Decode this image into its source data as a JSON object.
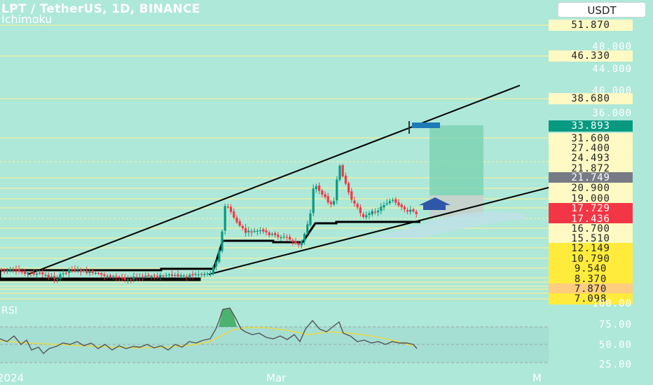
{
  "header": {
    "title": "LPT / TetherUS, 1D, BINANCE",
    "indicator": "Ichimoku",
    "currency_button": "USDT"
  },
  "rsi": {
    "label": "RSI",
    "ticks": [
      "100.00",
      "75.00",
      "50.00",
      "25.00"
    ]
  },
  "x_axis": {
    "labels": [
      "2024",
      "Mar",
      "M"
    ]
  },
  "price_axis": {
    "ticks": [
      "48.000",
      "44.000",
      "40.000",
      "36.000"
    ],
    "labels": [
      {
        "text": "51.870",
        "bg": "#fff9c4",
        "fg": "#222222"
      },
      {
        "text": "46.330",
        "bg": "#fff9c4",
        "fg": "#222222"
      },
      {
        "text": "38.680",
        "bg": "#fff9c4",
        "fg": "#222222"
      },
      {
        "text": "33.893",
        "bg": "#089981",
        "fg": "#ffffff"
      },
      {
        "text": "31.600",
        "bg": "#fff9c4",
        "fg": "#222222"
      },
      {
        "text": "27.400",
        "bg": "#fff9c4",
        "fg": "#222222"
      },
      {
        "text": "24.493",
        "bg": "#fff9c4",
        "fg": "#222222"
      },
      {
        "text": "21.872",
        "bg": "#fff9c4",
        "fg": "#222222"
      },
      {
        "text": "21.749",
        "bg": "#787b86",
        "fg": "#ffffff"
      },
      {
        "text": "20.900",
        "bg": "#fff9c4",
        "fg": "#222222"
      },
      {
        "text": "19.000",
        "bg": "#fff9c4",
        "fg": "#222222"
      },
      {
        "text": "17.729",
        "bg": "#f23645",
        "fg": "#ffffff"
      },
      {
        "text": "17.436",
        "bg": "#f23645",
        "fg": "#ffffff"
      },
      {
        "text": "16.700",
        "bg": "#fff9c4",
        "fg": "#222222"
      },
      {
        "text": "15.510",
        "bg": "#fff9c4",
        "fg": "#222222"
      },
      {
        "text": "12.149",
        "bg": "#ffeb3b",
        "fg": "#222222"
      },
      {
        "text": "10.790",
        "bg": "#ffeb3b",
        "fg": "#222222"
      },
      {
        "text": "9.540",
        "bg": "#ffeb3b",
        "fg": "#222222"
      },
      {
        "text": "8.370",
        "bg": "#ffeb3b",
        "fg": "#222222"
      },
      {
        "text": "7.870",
        "bg": "#ffcc80",
        "fg": "#222222"
      },
      {
        "text": "7.098",
        "bg": "#ffeb3b",
        "fg": "#222222"
      }
    ]
  },
  "colors": {
    "background": "#aee8d8",
    "bull": "#089981",
    "bear": "#f23645",
    "level_line": "#f5f0a0",
    "trendline": "#000000",
    "rsi_line": "#555555",
    "rsi_ma": "#e8d94a",
    "target_zone": "#7fd4b5",
    "stop_zone": "#c6d0cc",
    "arrow": "#2f56a8"
  }
}
